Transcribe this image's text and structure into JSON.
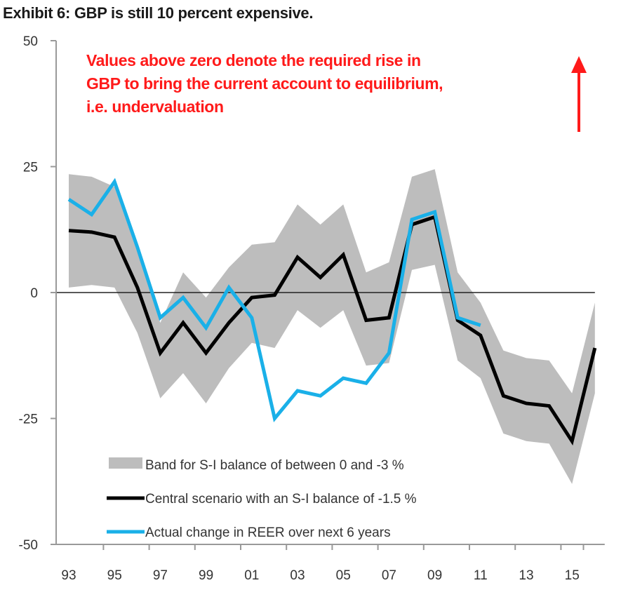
{
  "chart_data": {
    "type": "line",
    "title": "Exhibit 6: GBP is still 10 percent expensive.",
    "annotation": {
      "lines": [
        "Values above zero denote the required rise in",
        "GBP to bring the current account to equilibrium,",
        "i.e. undervaluation"
      ],
      "color": "#ff1a1a",
      "arrow": "up-arrow"
    },
    "xlabel": "",
    "ylabel": "",
    "ylim": [
      -50,
      50
    ],
    "yticks": [
      50,
      25,
      0,
      -25,
      -50
    ],
    "ytick_labels": [
      "50",
      "25",
      "0",
      "-25",
      "-50"
    ],
    "x": [
      1993,
      1994,
      1995,
      1996,
      1997,
      1998,
      1999,
      2000,
      2001,
      2002,
      2003,
      2004,
      2005,
      2006,
      2007,
      2008,
      2009,
      2010,
      2011,
      2012,
      2013,
      2014,
      2015,
      2016
    ],
    "xtick_labels": [
      "93",
      "95",
      "97",
      "99",
      "01",
      "03",
      "05",
      "07",
      "09",
      "11",
      "13",
      "15"
    ],
    "grid": false,
    "legend_position": "bottom-center",
    "series": [
      {
        "name": "Band for S-I balance of between 0 and -3 %",
        "kind": "band",
        "color": "#bdbdbd",
        "upper": [
          23.5,
          23,
          21,
          8,
          -6,
          4,
          -1,
          5,
          9.5,
          10,
          17.5,
          13.5,
          17.5,
          4,
          6,
          23,
          24.5,
          4,
          -2,
          -11.5,
          -13,
          -13.5,
          -20,
          -2
        ],
        "lower": [
          1,
          1.5,
          1,
          -8,
          -21,
          -16,
          -22,
          -15,
          -10,
          -11,
          -3.5,
          -7,
          -3.5,
          -14.5,
          -14,
          4.5,
          5.5,
          -13.5,
          -17,
          -28,
          -29.5,
          -30,
          -38,
          -20
        ]
      },
      {
        "name": "Central scenario with an S-I balance of -1.5 %",
        "kind": "line",
        "color": "#000000",
        "values": [
          12.3,
          12,
          11,
          1,
          -12,
          -6,
          -12,
          -6,
          -1,
          -0.5,
          7,
          3,
          7.5,
          -5.5,
          -5,
          13.5,
          15,
          -5.5,
          -8.5,
          -20.5,
          -22,
          -22.5,
          -29.5,
          -11
        ]
      },
      {
        "name": "Actual change in REER over next 6 years",
        "kind": "line",
        "color": "#1ab0e8",
        "values": [
          18.5,
          15.5,
          22,
          9,
          -5,
          -1,
          -7,
          1,
          -5,
          -25,
          -19.5,
          -20.5,
          -17,
          -18,
          -12,
          14.5,
          16,
          -5,
          -6.5,
          null,
          null,
          null,
          null,
          null
        ]
      }
    ]
  }
}
